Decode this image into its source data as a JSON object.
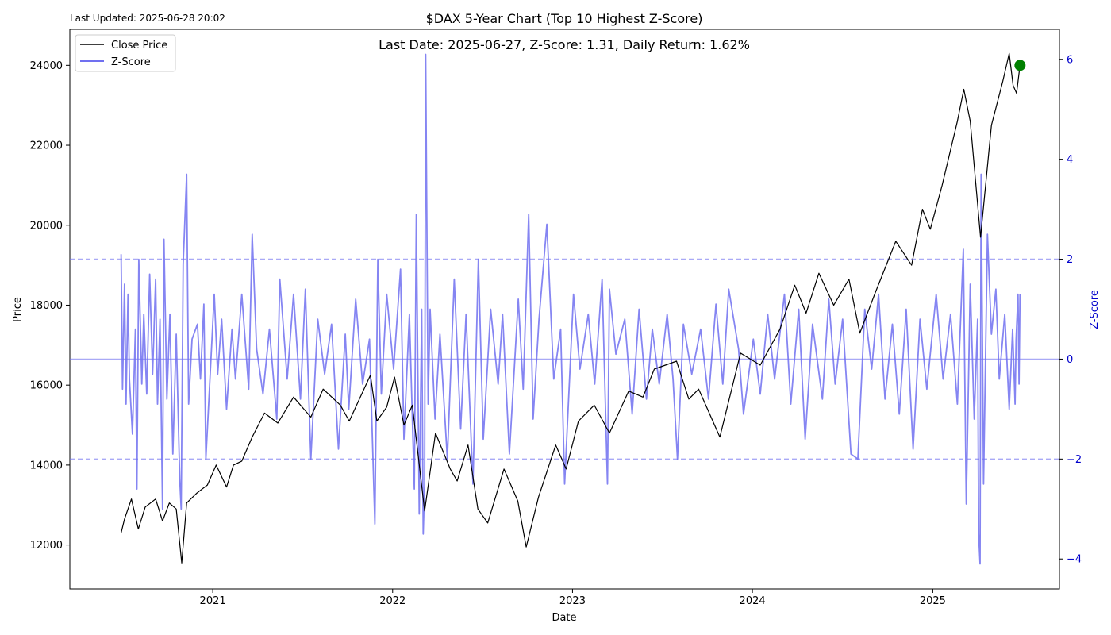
{
  "header": {
    "last_updated": "Last Updated: 2025-06-28 20:02",
    "title": "$DAX 5-Year Chart (Top 10 Highest Z-Score)",
    "annotation": "Last Date: 2025-06-27, Z-Score: 1.31, Daily Return: 1.62%"
  },
  "colors": {
    "price": "#000000",
    "zscore": "#7070f0",
    "zscore_axis": "#0000cc",
    "marker": "#008000"
  },
  "chart_data": {
    "type": "line",
    "xlabel": "Date",
    "ylabel": "Price",
    "y2label": "Z-Score",
    "xlim": [
      "2020-03-17",
      "2025-09-15"
    ],
    "ylim": [
      10900,
      24900
    ],
    "y2lim": [
      -4.6,
      6.6
    ],
    "x_ticks": [
      "2021",
      "2022",
      "2023",
      "2024",
      "2025"
    ],
    "x_tick_dates": [
      "2021-01-01",
      "2022-01-01",
      "2023-01-01",
      "2024-01-01",
      "2025-01-01"
    ],
    "y_ticks": [
      12000,
      14000,
      16000,
      18000,
      20000,
      22000,
      24000
    ],
    "y2_ticks": [
      -4,
      -2,
      0,
      2,
      4,
      6
    ],
    "z_reference_lines": [
      2,
      0,
      -2
    ],
    "legend": {
      "placement": "top-left",
      "entries": [
        "Close Price",
        "Z-Score"
      ]
    },
    "last_point": {
      "date": "2025-06-27",
      "price": 24000,
      "zscore": 1.31,
      "daily_return": "1.62%"
    },
    "series": [
      {
        "name": "Close Price",
        "axis": "left",
        "points": [
          [
            "2020-06-29",
            12300
          ],
          [
            "2020-07-06",
            12650
          ],
          [
            "2020-07-20",
            13150
          ],
          [
            "2020-08-03",
            12400
          ],
          [
            "2020-08-17",
            12950
          ],
          [
            "2020-09-07",
            13150
          ],
          [
            "2020-09-21",
            12600
          ],
          [
            "2020-10-05",
            13050
          ],
          [
            "2020-10-19",
            12900
          ],
          [
            "2020-10-30",
            11550
          ],
          [
            "2020-11-09",
            13050
          ],
          [
            "2020-11-30",
            13300
          ],
          [
            "2020-12-21",
            13500
          ],
          [
            "2021-01-08",
            14000
          ],
          [
            "2021-01-29",
            13450
          ],
          [
            "2021-02-12",
            14000
          ],
          [
            "2021-03-01",
            14100
          ],
          [
            "2021-03-22",
            14700
          ],
          [
            "2021-04-16",
            15300
          ],
          [
            "2021-05-13",
            15050
          ],
          [
            "2021-06-14",
            15700
          ],
          [
            "2021-07-19",
            15200
          ],
          [
            "2021-08-13",
            15900
          ],
          [
            "2021-09-17",
            15500
          ],
          [
            "2021-10-05",
            15100
          ],
          [
            "2021-11-17",
            16250
          ],
          [
            "2021-11-30",
            15100
          ],
          [
            "2021-12-20",
            15450
          ],
          [
            "2022-01-05",
            16200
          ],
          [
            "2022-01-24",
            15000
          ],
          [
            "2022-02-10",
            15500
          ],
          [
            "2022-03-07",
            12850
          ],
          [
            "2022-03-29",
            14800
          ],
          [
            "2022-04-28",
            13900
          ],
          [
            "2022-05-12",
            13600
          ],
          [
            "2022-06-03",
            14500
          ],
          [
            "2022-06-23",
            12900
          ],
          [
            "2022-07-13",
            12550
          ],
          [
            "2022-08-15",
            13900
          ],
          [
            "2022-09-12",
            13100
          ],
          [
            "2022-09-29",
            11950
          ],
          [
            "2022-10-24",
            13200
          ],
          [
            "2022-11-28",
            14500
          ],
          [
            "2022-12-19",
            13900
          ],
          [
            "2023-01-13",
            15100
          ],
          [
            "2023-02-14",
            15500
          ],
          [
            "2023-03-17",
            14800
          ],
          [
            "2023-04-25",
            15850
          ],
          [
            "2023-05-24",
            15700
          ],
          [
            "2023-06-16",
            16400
          ],
          [
            "2023-07-31",
            16600
          ],
          [
            "2023-08-25",
            15650
          ],
          [
            "2023-09-14",
            15900
          ],
          [
            "2023-10-27",
            14700
          ],
          [
            "2023-12-08",
            16800
          ],
          [
            "2024-01-17",
            16500
          ],
          [
            "2024-02-26",
            17400
          ],
          [
            "2024-03-27",
            18500
          ],
          [
            "2024-04-19",
            17800
          ],
          [
            "2024-05-15",
            18800
          ],
          [
            "2024-06-14",
            18000
          ],
          [
            "2024-07-15",
            18650
          ],
          [
            "2024-08-06",
            17300
          ],
          [
            "2024-09-06",
            18300
          ],
          [
            "2024-10-18",
            19600
          ],
          [
            "2024-11-19",
            19000
          ],
          [
            "2024-12-11",
            20400
          ],
          [
            "2024-12-27",
            19900
          ],
          [
            "2025-01-20",
            21000
          ],
          [
            "2025-02-20",
            22600
          ],
          [
            "2025-03-05",
            23400
          ],
          [
            "2025-03-18",
            22600
          ],
          [
            "2025-04-08",
            19700
          ],
          [
            "2025-04-30",
            22500
          ],
          [
            "2025-05-23",
            23600
          ],
          [
            "2025-06-05",
            24300
          ],
          [
            "2025-06-13",
            23500
          ],
          [
            "2025-06-20",
            23300
          ],
          [
            "2025-06-27",
            24000
          ]
        ]
      },
      {
        "name": "Z-Score",
        "axis": "right",
        "points": [
          [
            "2020-06-29",
            2.1
          ],
          [
            "2020-07-02",
            -0.6
          ],
          [
            "2020-07-06",
            1.5
          ],
          [
            "2020-07-09",
            -0.9
          ],
          [
            "2020-07-13",
            1.3
          ],
          [
            "2020-07-16",
            -0.4
          ],
          [
            "2020-07-22",
            -1.5
          ],
          [
            "2020-07-28",
            0.6
          ],
          [
            "2020-07-31",
            -2.6
          ],
          [
            "2020-08-04",
            2.0
          ],
          [
            "2020-08-10",
            -0.5
          ],
          [
            "2020-08-14",
            0.9
          ],
          [
            "2020-08-20",
            -0.7
          ],
          [
            "2020-08-26",
            1.7
          ],
          [
            "2020-09-01",
            -0.3
          ],
          [
            "2020-09-07",
            1.6
          ],
          [
            "2020-09-11",
            -0.9
          ],
          [
            "2020-09-16",
            0.8
          ],
          [
            "2020-09-21",
            -3.0
          ],
          [
            "2020-09-24",
            2.4
          ],
          [
            "2020-09-30",
            -0.8
          ],
          [
            "2020-10-06",
            0.9
          ],
          [
            "2020-10-12",
            -1.9
          ],
          [
            "2020-10-19",
            0.5
          ],
          [
            "2020-10-26",
            -2.4
          ],
          [
            "2020-10-29",
            -3.0
          ],
          [
            "2020-11-02",
            1.9
          ],
          [
            "2020-11-09",
            3.7
          ],
          [
            "2020-11-13",
            -0.9
          ],
          [
            "2020-11-20",
            0.4
          ],
          [
            "2020-12-01",
            0.7
          ],
          [
            "2020-12-07",
            -0.4
          ],
          [
            "2020-12-14",
            1.1
          ],
          [
            "2020-12-18",
            -2.0
          ],
          [
            "2021-01-04",
            1.3
          ],
          [
            "2021-01-11",
            -0.3
          ],
          [
            "2021-01-19",
            0.8
          ],
          [
            "2021-01-29",
            -1.0
          ],
          [
            "2021-02-09",
            0.6
          ],
          [
            "2021-02-16",
            -0.4
          ],
          [
            "2021-03-01",
            1.3
          ],
          [
            "2021-03-15",
            -0.6
          ],
          [
            "2021-03-22",
            2.5
          ],
          [
            "2021-03-31",
            0.2
          ],
          [
            "2021-04-13",
            -0.7
          ],
          [
            "2021-04-26",
            0.6
          ],
          [
            "2021-05-11",
            -1.2
          ],
          [
            "2021-05-17",
            1.6
          ],
          [
            "2021-06-01",
            -0.4
          ],
          [
            "2021-06-14",
            1.3
          ],
          [
            "2021-06-28",
            -0.8
          ],
          [
            "2021-07-08",
            1.4
          ],
          [
            "2021-07-19",
            -2.0
          ],
          [
            "2021-08-02",
            0.8
          ],
          [
            "2021-08-16",
            -0.3
          ],
          [
            "2021-08-30",
            0.7
          ],
          [
            "2021-09-13",
            -1.8
          ],
          [
            "2021-09-27",
            0.5
          ],
          [
            "2021-10-04",
            -1.0
          ],
          [
            "2021-10-18",
            1.2
          ],
          [
            "2021-11-01",
            -0.5
          ],
          [
            "2021-11-15",
            0.4
          ],
          [
            "2021-11-26",
            -3.3
          ],
          [
            "2021-12-02",
            2.0
          ],
          [
            "2021-12-09",
            -0.7
          ],
          [
            "2021-12-20",
            1.3
          ],
          [
            "2022-01-03",
            -0.2
          ],
          [
            "2022-01-17",
            1.8
          ],
          [
            "2022-01-24",
            -1.6
          ],
          [
            "2022-02-04",
            0.9
          ],
          [
            "2022-02-14",
            -2.6
          ],
          [
            "2022-02-18",
            2.9
          ],
          [
            "2022-02-24",
            -3.1
          ],
          [
            "2022-03-01",
            1.0
          ],
          [
            "2022-03-04",
            -3.5
          ],
          [
            "2022-03-07",
            -2.5
          ],
          [
            "2022-03-09",
            6.1
          ],
          [
            "2022-03-14",
            -0.9
          ],
          [
            "2022-03-18",
            1.0
          ],
          [
            "2022-03-28",
            -1.2
          ],
          [
            "2022-04-07",
            0.5
          ],
          [
            "2022-04-22",
            -2.0
          ],
          [
            "2022-05-06",
            1.6
          ],
          [
            "2022-05-19",
            -1.4
          ],
          [
            "2022-05-30",
            0.9
          ],
          [
            "2022-06-13",
            -2.5
          ],
          [
            "2022-06-24",
            2.0
          ],
          [
            "2022-07-04",
            -1.6
          ],
          [
            "2022-07-19",
            1.0
          ],
          [
            "2022-08-03",
            -0.5
          ],
          [
            "2022-08-12",
            0.9
          ],
          [
            "2022-08-26",
            -1.9
          ],
          [
            "2022-09-13",
            1.2
          ],
          [
            "2022-09-23",
            -0.6
          ],
          [
            "2022-10-04",
            2.9
          ],
          [
            "2022-10-13",
            -1.2
          ],
          [
            "2022-10-25",
            0.8
          ],
          [
            "2022-11-10",
            2.7
          ],
          [
            "2022-11-24",
            -0.4
          ],
          [
            "2022-12-08",
            0.6
          ],
          [
            "2022-12-16",
            -2.5
          ],
          [
            "2023-01-03",
            1.3
          ],
          [
            "2023-01-16",
            -0.2
          ],
          [
            "2023-02-02",
            0.9
          ],
          [
            "2023-02-15",
            -0.5
          ],
          [
            "2023-03-02",
            1.6
          ],
          [
            "2023-03-13",
            -2.5
          ],
          [
            "2023-03-17",
            1.4
          ],
          [
            "2023-03-30",
            0.1
          ],
          [
            "2023-04-17",
            0.8
          ],
          [
            "2023-05-02",
            -1.1
          ],
          [
            "2023-05-16",
            1.0
          ],
          [
            "2023-05-31",
            -0.8
          ],
          [
            "2023-06-12",
            0.6
          ],
          [
            "2023-06-26",
            -0.5
          ],
          [
            "2023-07-12",
            0.9
          ],
          [
            "2023-07-24",
            -0.4
          ],
          [
            "2023-08-02",
            -2.0
          ],
          [
            "2023-08-14",
            0.7
          ],
          [
            "2023-08-31",
            -0.3
          ],
          [
            "2023-09-18",
            0.6
          ],
          [
            "2023-10-04",
            -0.8
          ],
          [
            "2023-10-19",
            1.1
          ],
          [
            "2023-11-02",
            -0.5
          ],
          [
            "2023-11-14",
            1.4
          ],
          [
            "2023-12-04",
            0.2
          ],
          [
            "2023-12-14",
            -1.1
          ],
          [
            "2024-01-03",
            0.4
          ],
          [
            "2024-01-17",
            -0.7
          ],
          [
            "2024-02-01",
            0.9
          ],
          [
            "2024-02-15",
            -0.4
          ],
          [
            "2024-03-06",
            1.3
          ],
          [
            "2024-03-19",
            -0.9
          ],
          [
            "2024-04-04",
            1.0
          ],
          [
            "2024-04-17",
            -1.6
          ],
          [
            "2024-05-02",
            0.7
          ],
          [
            "2024-05-22",
            -0.8
          ],
          [
            "2024-06-04",
            1.2
          ],
          [
            "2024-06-17",
            -0.5
          ],
          [
            "2024-07-02",
            0.8
          ],
          [
            "2024-07-19",
            -1.9
          ],
          [
            "2024-08-02",
            -2.0
          ],
          [
            "2024-08-16",
            1.0
          ],
          [
            "2024-08-30",
            -0.2
          ],
          [
            "2024-09-13",
            1.3
          ],
          [
            "2024-09-26",
            -0.8
          ],
          [
            "2024-10-11",
            0.7
          ],
          [
            "2024-10-25",
            -1.1
          ],
          [
            "2024-11-08",
            1.0
          ],
          [
            "2024-11-22",
            -1.8
          ],
          [
            "2024-12-06",
            0.8
          ],
          [
            "2024-12-20",
            -0.6
          ],
          [
            "2025-01-08",
            1.3
          ],
          [
            "2025-01-22",
            -0.4
          ],
          [
            "2025-02-06",
            0.9
          ],
          [
            "2025-02-20",
            -0.9
          ],
          [
            "2025-03-04",
            2.2
          ],
          [
            "2025-03-10",
            -2.9
          ],
          [
            "2025-03-18",
            1.5
          ],
          [
            "2025-03-26",
            -1.2
          ],
          [
            "2025-04-02",
            0.8
          ],
          [
            "2025-04-04",
            -3.5
          ],
          [
            "2025-04-07",
            -4.1
          ],
          [
            "2025-04-09",
            3.7
          ],
          [
            "2025-04-14",
            -2.5
          ],
          [
            "2025-04-22",
            2.5
          ],
          [
            "2025-04-30",
            0.5
          ],
          [
            "2025-05-09",
            1.4
          ],
          [
            "2025-05-16",
            -0.4
          ],
          [
            "2025-05-27",
            0.9
          ],
          [
            "2025-06-05",
            -1.0
          ],
          [
            "2025-06-12",
            0.6
          ],
          [
            "2025-06-17",
            -0.9
          ],
          [
            "2025-06-19",
            0.4
          ],
          [
            "2025-06-23",
            1.3
          ],
          [
            "2025-06-25",
            -0.5
          ],
          [
            "2025-06-27",
            1.31
          ]
        ]
      }
    ]
  }
}
